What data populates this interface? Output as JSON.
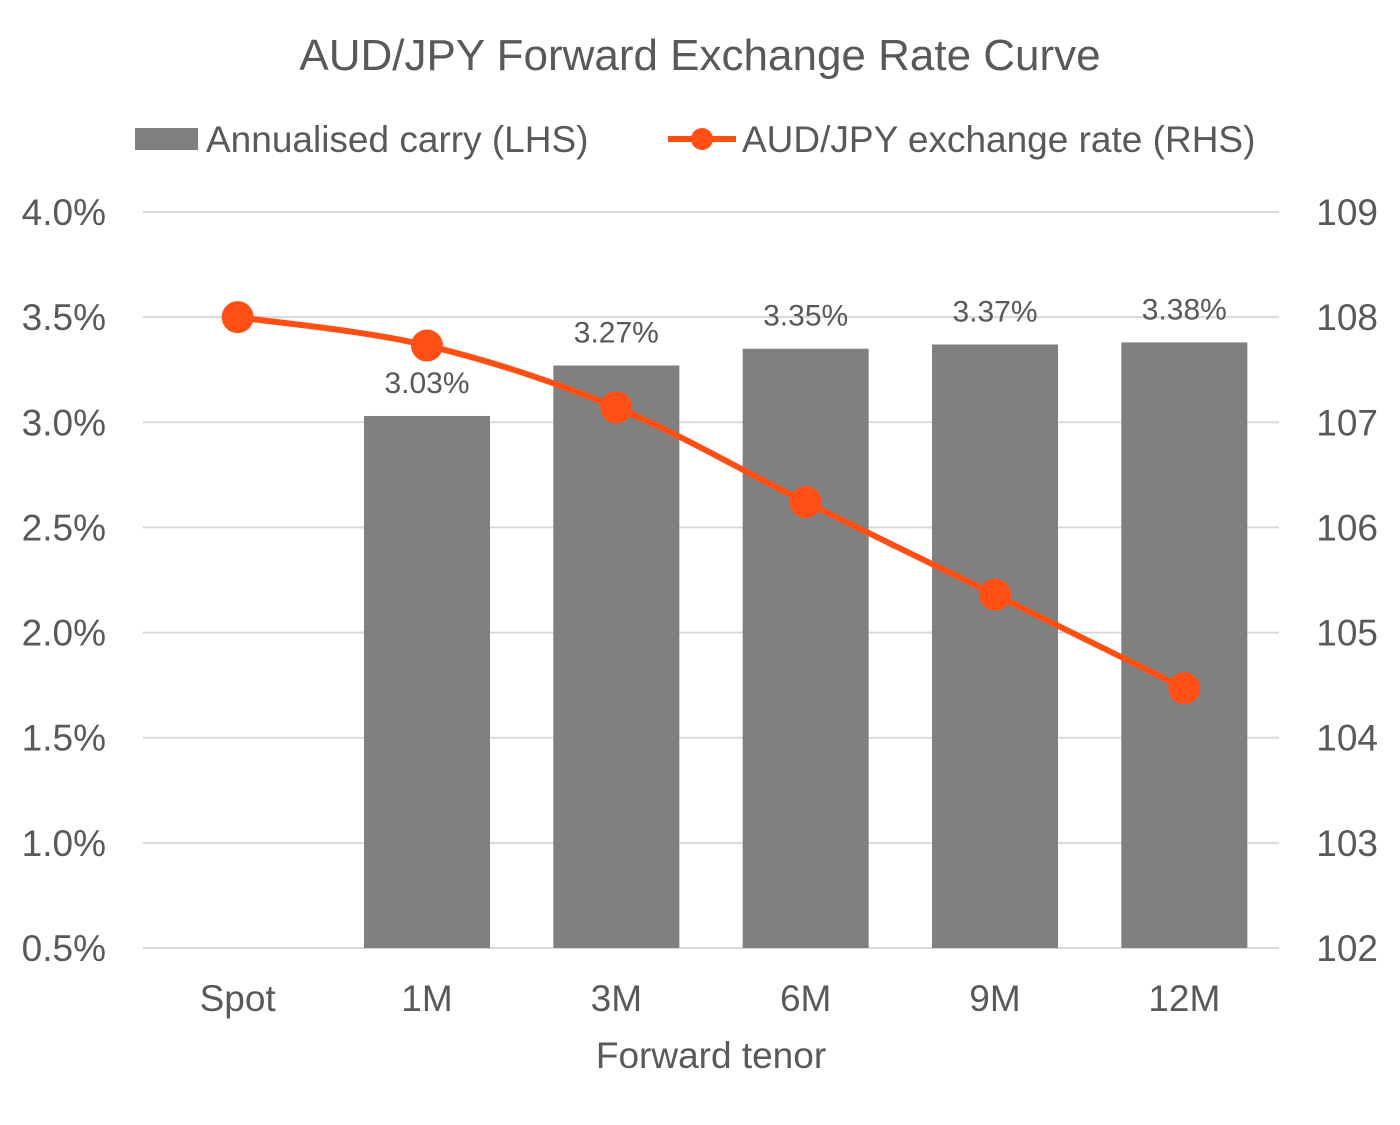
{
  "chart_data": {
    "type": "bar+line",
    "title": "AUD/JPY Forward Exchange Rate Curve",
    "xlabel": "Forward tenor",
    "categories": [
      "Spot",
      "1M",
      "3M",
      "6M",
      "9M",
      "12M"
    ],
    "legend_position": "top",
    "grid": true,
    "series": [
      {
        "name": "Annualised carry (LHS)",
        "type": "bar",
        "axis": "left",
        "values": [
          null,
          3.03,
          3.27,
          3.35,
          3.37,
          3.38
        ],
        "labels": [
          "",
          "3.03%",
          "3.27%",
          "3.35%",
          "3.37%",
          "3.38%"
        ],
        "color": "#808080"
      },
      {
        "name": "AUD/JPY exchange rate (RHS)",
        "type": "line",
        "axis": "right",
        "values": [
          108.0,
          107.73,
          107.14,
          106.24,
          105.36,
          104.47
        ],
        "color": "#FF4F14"
      }
    ],
    "y_left": {
      "min": 0.5,
      "max": 4.0,
      "ticks": [
        "0.5%",
        "1.0%",
        "1.5%",
        "2.0%",
        "2.5%",
        "3.0%",
        "3.5%",
        "4.0%"
      ]
    },
    "y_right": {
      "min": 102,
      "max": 109,
      "ticks": [
        "102",
        "103",
        "104",
        "105",
        "106",
        "107",
        "108",
        "109"
      ]
    }
  }
}
